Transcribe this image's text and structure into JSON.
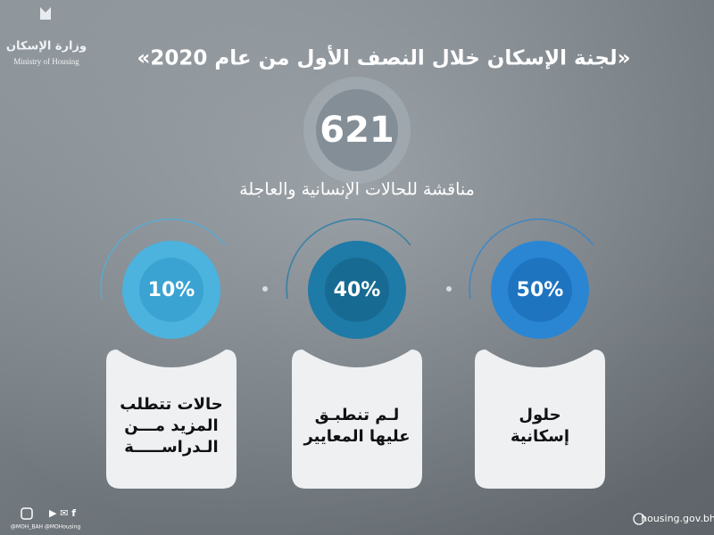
{
  "logo": {
    "arabic": "وزارة الإسكان",
    "english": "Ministry of Housing"
  },
  "title": "«لجنة الإسكان خلال النصف الأول من عام 2020»",
  "headline": {
    "number": "621",
    "caption": "مناقشة للحالات الإنسانية والعاجلة"
  },
  "items": [
    {
      "percent": "50%",
      "lines": [
        "حلول",
        "إسكانية"
      ]
    },
    {
      "percent": "40%",
      "lines": [
        "لـم تنطبـق",
        "عليها المعايير"
      ]
    },
    {
      "percent": "10%",
      "lines": [
        "حالات تتطلب",
        "المزيد مـــن",
        "الـدراســـــة"
      ]
    }
  ],
  "footer": {
    "instagram": "@MOH_BAH",
    "twitter": "@MOHousing",
    "website": "housing.gov.bh"
  }
}
